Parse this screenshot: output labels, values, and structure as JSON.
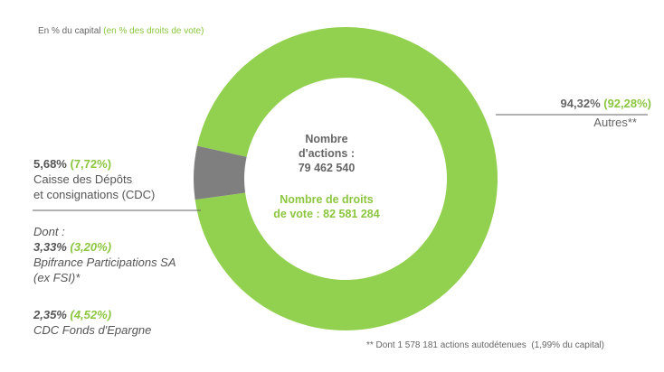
{
  "legend": {
    "capital_label": "En % du capital",
    "votes_label": "(en % des droits de vote)"
  },
  "center": {
    "shares_label_1": "Nombre",
    "shares_label_2": "d'actions :",
    "shares_value": "79 462 540",
    "votes_label_1": "Nombre de droits",
    "votes_label_2": "de vote : 82 581 284"
  },
  "chart_data": {
    "type": "pie",
    "donut": true,
    "slices": [
      {
        "label": "Autres**",
        "capital_pct": 94.32,
        "votes_pct": 92.28,
        "color": "#92d050"
      },
      {
        "label": "Caisse des Dépôts et consignations (CDC)",
        "capital_pct": 5.68,
        "votes_pct": 7.72,
        "color": "#7f7f7f"
      }
    ]
  },
  "labels": {
    "autres": {
      "pct": "94,32%",
      "votes_pct": "(92,28%)",
      "name": "Autres**"
    },
    "cdc": {
      "pct": "5,68%",
      "votes_pct": "(7,72%)",
      "name_1": "Caisse des Dépôts",
      "name_2": "et consignations (CDC)"
    },
    "dont": "Dont :",
    "bpi": {
      "pct": "3,33%",
      "votes_pct": "(3,20%)",
      "name_1": "Bpifrance Participations SA",
      "name_2": "(ex FSI)*"
    },
    "cdc_fe": {
      "pct": "2,35%",
      "votes_pct": "(4,52%)",
      "name": "CDC Fonds d'Epargne"
    }
  },
  "footnote": "** Dont 1 578 181 actions autodétenues  (1,99% du capital)"
}
